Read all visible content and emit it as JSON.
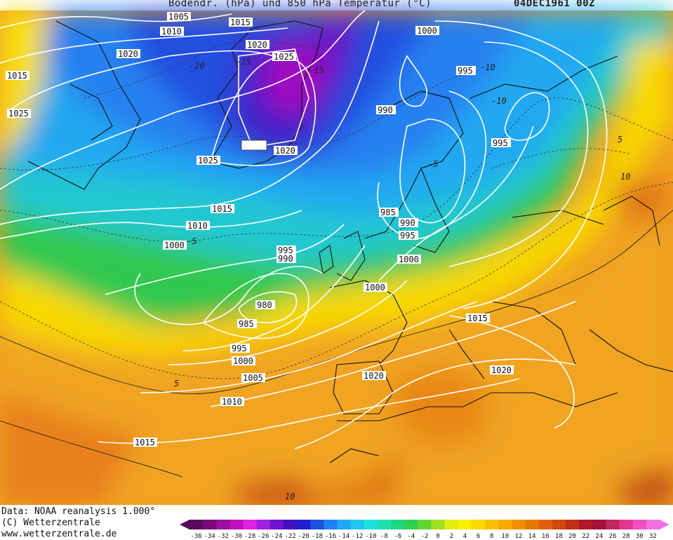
{
  "header": {
    "title": "Bodendr. (hPa) und 850 hPa Temperatur (°C)",
    "date": "04DEC1961 00Z"
  },
  "footer": {
    "data_source": "Data: NOAA reanalysis 1.000°",
    "copyright": "(C) Wetterzentrale",
    "website": "www.wetterzentrale.de"
  },
  "isobar_labels": [
    "1005",
    "1015",
    "1010",
    "1020",
    "1025",
    "1000",
    "995",
    "1015",
    "1025",
    "1020",
    "990",
    "995",
    "1025",
    "1020",
    "1015",
    "1010",
    "985",
    "990",
    "995",
    "1000",
    "995",
    "990",
    "1000",
    "1000",
    "980",
    "985",
    "995",
    "1000",
    "1005",
    "1010",
    "1015",
    "1020",
    "1015",
    "1020"
  ],
  "isotherm_labels": [
    "-20",
    "-15",
    "-10",
    "-5",
    "5",
    "5",
    "-5",
    "-10",
    "-15",
    "10",
    "10"
  ],
  "color_scale": {
    "labels": [
      "-36",
      "-34",
      "-32",
      "-30",
      "-28",
      "-26",
      "-24",
      "-22",
      "-20",
      "-18",
      "-16",
      "-14",
      "-12",
      "-10",
      "-8",
      "-6",
      "-4",
      "-2",
      "0",
      "2",
      "4",
      "6",
      "8",
      "10",
      "12",
      "14",
      "16",
      "18",
      "20",
      "22",
      "24",
      "26",
      "28",
      "30",
      "32"
    ],
    "colors": [
      "#5a0a5a",
      "#7a0a7a",
      "#9a10a0",
      "#c010c0",
      "#e020e0",
      "#a020e0",
      "#7010d0",
      "#4010c0",
      "#2020d0",
      "#2050e0",
      "#2080f0",
      "#20a8f8",
      "#20c8f0",
      "#20e0e0",
      "#20e0b0",
      "#20d880",
      "#30d050",
      "#60d830",
      "#a0e020",
      "#e0f010",
      "#f8f000",
      "#f8d800",
      "#f8c000",
      "#f8a800",
      "#f09000",
      "#e87800",
      "#e06010",
      "#d04810",
      "#c03018",
      "#b01828",
      "#a01038",
      "#c02860",
      "#e03890",
      "#f050c0",
      "#f070e0"
    ]
  }
}
